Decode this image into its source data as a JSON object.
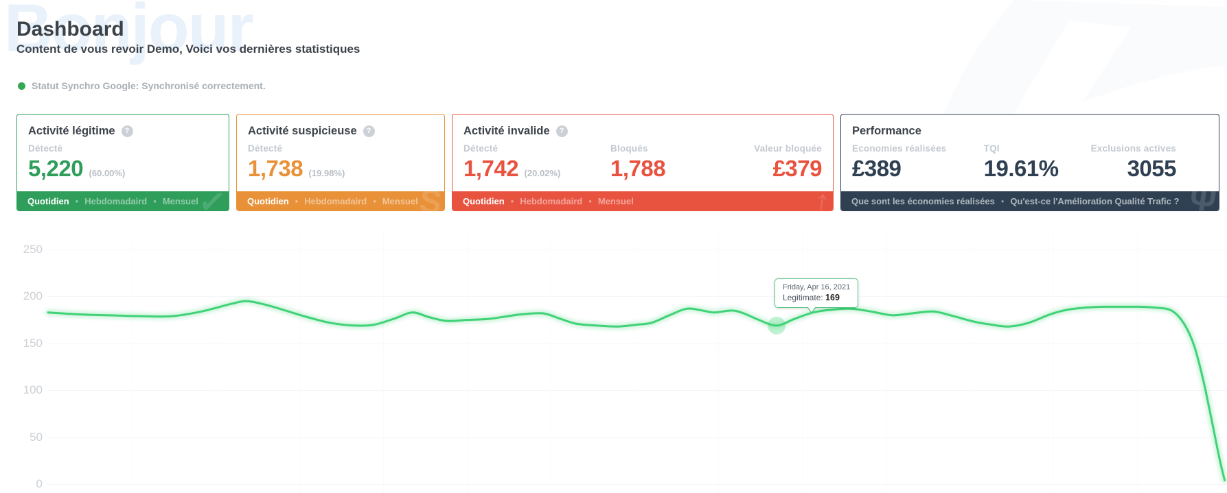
{
  "page": {
    "watermark": "Bonjour",
    "title": "Dashboard",
    "subtitle": "Content de vous revoir Demo, Voici vos dernières statistiques"
  },
  "status": {
    "label": "Statut Synchro Google: Synchronisé correctement.",
    "dot_color": "#34a853"
  },
  "cards": {
    "legitimate": {
      "title": "Activité légitime",
      "help_glyph": "?",
      "accent": "#2f9e5b",
      "metrics": [
        {
          "label": "Détecté",
          "value": "5,220",
          "pct": "(60.00%)"
        }
      ],
      "tabs": [
        "Quotidien",
        "Hebdomadaird",
        "Mensuel"
      ],
      "active_tab": "Quotidien",
      "watermark_glyph": "✓"
    },
    "suspicious": {
      "title": "Activité suspicieuse",
      "help_glyph": "?",
      "accent": "#e89138",
      "metrics": [
        {
          "label": "Détecté",
          "value": "1,738",
          "pct": "(19.98%)"
        }
      ],
      "tabs": [
        "Quotidien",
        "Hebdomadaird",
        "Mensuel"
      ],
      "active_tab": "Quotidien",
      "watermark_glyph": "S"
    },
    "invalid": {
      "title": "Activité invalide",
      "help_glyph": "?",
      "accent": "#e85340",
      "metrics": [
        {
          "label": "Détecté",
          "value": "1,742",
          "pct": "(20.02%)"
        },
        {
          "label": "Bloqués",
          "value": "1,788"
        },
        {
          "label": "Valeur bloquée",
          "value": "£379"
        }
      ],
      "tabs": [
        "Quotidien",
        "Hebdomadaird",
        "Mensuel"
      ],
      "active_tab": "Quotidien",
      "watermark_glyph": "↑"
    },
    "performance": {
      "title": "Performance",
      "accent": "#2e4052",
      "metrics": [
        {
          "label": "Economies réalisées",
          "value": "£389"
        },
        {
          "label": "TQI",
          "value": "19.61%"
        },
        {
          "label": "Exclusions actives",
          "value": "3055"
        }
      ],
      "links": [
        "Que sont les économies réalisées",
        "Qu'est-ce l'Amélioration Qualité Trafic ?"
      ],
      "watermark_glyph": "Ψ"
    }
  },
  "chart_data": {
    "type": "line",
    "title": "",
    "xlabel": "",
    "ylabel": "",
    "ylim": [
      0,
      250
    ],
    "yticks": [
      0,
      50,
      100,
      150,
      200,
      250
    ],
    "grid": "horizontal-faint",
    "legend_position": "none",
    "series": [
      {
        "name": "Legitimate",
        "color": "#3fd276",
        "points_x_pct_value": [
          [
            0,
            183
          ],
          [
            2.5,
            181
          ],
          [
            5,
            180
          ],
          [
            8,
            179
          ],
          [
            10.5,
            179
          ],
          [
            13,
            184
          ],
          [
            15.5,
            192
          ],
          [
            16.9,
            195
          ],
          [
            18.5,
            191
          ],
          [
            20.4,
            184
          ],
          [
            22,
            178
          ],
          [
            23.9,
            172
          ],
          [
            26,
            169
          ],
          [
            27.7,
            170
          ],
          [
            29.5,
            177
          ],
          [
            30.9,
            183
          ],
          [
            32.3,
            178
          ],
          [
            33.8,
            174
          ],
          [
            35.5,
            175
          ],
          [
            37.3,
            176
          ],
          [
            39,
            179
          ],
          [
            40.2,
            181
          ],
          [
            42,
            182
          ],
          [
            43.5,
            176
          ],
          [
            44.8,
            171
          ],
          [
            46.5,
            169
          ],
          [
            48.3,
            168
          ],
          [
            50,
            170
          ],
          [
            51.2,
            172
          ],
          [
            52.7,
            180
          ],
          [
            54.2,
            187
          ],
          [
            55.5,
            185
          ],
          [
            56.5,
            183
          ],
          [
            58,
            185
          ],
          [
            59,
            182
          ],
          [
            60.3,
            175
          ],
          [
            61.8,
            169
          ],
          [
            63.3,
            176
          ],
          [
            64.9,
            183
          ],
          [
            66.5,
            186
          ],
          [
            68.1,
            187
          ],
          [
            69.8,
            184
          ],
          [
            71.6,
            180
          ],
          [
            73.3,
            182
          ],
          [
            75.1,
            184
          ],
          [
            76.8,
            179
          ],
          [
            78.6,
            173
          ],
          [
            80,
            170
          ],
          [
            81.5,
            168
          ],
          [
            83.2,
            172
          ],
          [
            85,
            181
          ],
          [
            86.5,
            186
          ],
          [
            87.9,
            188
          ],
          [
            89.5,
            189
          ],
          [
            91,
            189
          ],
          [
            92.5,
            189
          ],
          [
            94,
            188
          ],
          [
            95.3,
            185
          ],
          [
            96.3,
            172
          ],
          [
            97.2,
            148
          ],
          [
            98,
            110
          ],
          [
            98.8,
            62
          ],
          [
            99.4,
            25
          ],
          [
            99.8,
            4
          ]
        ]
      }
    ],
    "highlight": {
      "series": "Legitimate",
      "x_pct": 61.8,
      "value": 169
    },
    "tooltip": {
      "date": "Friday, Apr 16, 2021",
      "series_label": "Legitimate:",
      "value": "169"
    }
  }
}
